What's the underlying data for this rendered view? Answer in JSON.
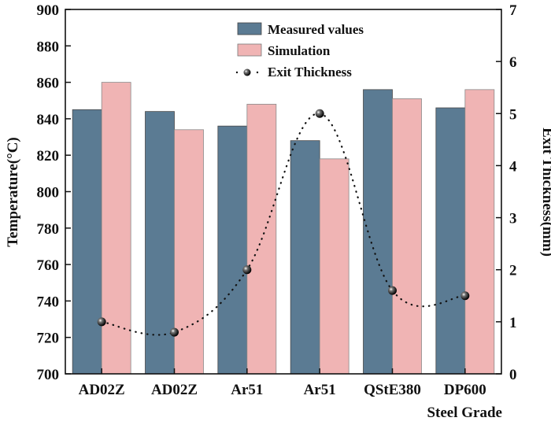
{
  "chart_data": {
    "type": "bar",
    "title": "",
    "xlabel": "Steel Grade",
    "ylabel": "Temperature(°C)",
    "y2label": "Exit Thickness(mm)",
    "categories": [
      "AD02Z",
      "AD02Z",
      "Ar51",
      "Ar51",
      "QStE380",
      "DP600"
    ],
    "ylim": [
      700,
      900
    ],
    "yticks": [
      700,
      720,
      740,
      760,
      780,
      800,
      820,
      840,
      860,
      880,
      900
    ],
    "y2lim": [
      0,
      7
    ],
    "y2ticks": [
      0,
      1,
      2,
      3,
      4,
      5,
      6,
      7
    ],
    "grid": false,
    "legend_position": "top-center",
    "series": [
      {
        "name": "Measured values",
        "type": "bar",
        "axis": "left",
        "color": "#5b7b93",
        "values": [
          845,
          844,
          836,
          828,
          856,
          846
        ]
      },
      {
        "name": "Simulation",
        "type": "bar",
        "axis": "left",
        "color": "#f0b4b4",
        "values": [
          860,
          834,
          848,
          818,
          851,
          856
        ]
      },
      {
        "name": "Exit Thickness",
        "type": "line",
        "style": "dotted",
        "marker": "sphere",
        "axis": "right",
        "color": "#111111",
        "values": [
          1.0,
          0.8,
          2.0,
          5.0,
          1.6,
          1.5
        ]
      }
    ]
  }
}
